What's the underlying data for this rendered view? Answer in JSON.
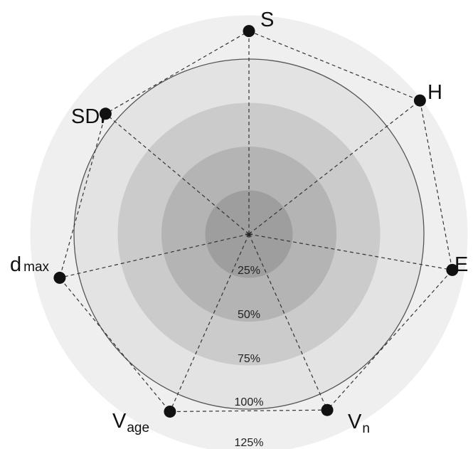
{
  "chart_data": {
    "type": "radar",
    "title": "",
    "rings": [
      {
        "label": "25%",
        "value": 25,
        "color": "#9e9e9e"
      },
      {
        "label": "50%",
        "value": 50,
        "color": "#b4b4b4"
      },
      {
        "label": "75%",
        "value": 75,
        "color": "#cbcbcb"
      },
      {
        "label": "100%",
        "value": 100,
        "color": "#e3e3e3"
      },
      {
        "label": "125%",
        "value": 125,
        "color": "#efefef"
      }
    ],
    "axes": [
      {
        "name": "S",
        "sub": "",
        "angle_deg": 90
      },
      {
        "name": "H",
        "sub": "",
        "angle_deg": 38
      },
      {
        "name": "E",
        "sub": "",
        "angle_deg": -10
      },
      {
        "name": "V",
        "sub": "n",
        "angle_deg": -66
      },
      {
        "name": "V",
        "sub": "age",
        "angle_deg": -114
      },
      {
        "name": "d",
        "sub": "max",
        "angle_deg": -167
      },
      {
        "name": "SDI",
        "sub": "",
        "angle_deg": 140
      }
    ],
    "series": [
      {
        "values": [
          116,
          124,
          118,
          110,
          111,
          111,
          107
        ]
      }
    ],
    "rmax": 125
  }
}
